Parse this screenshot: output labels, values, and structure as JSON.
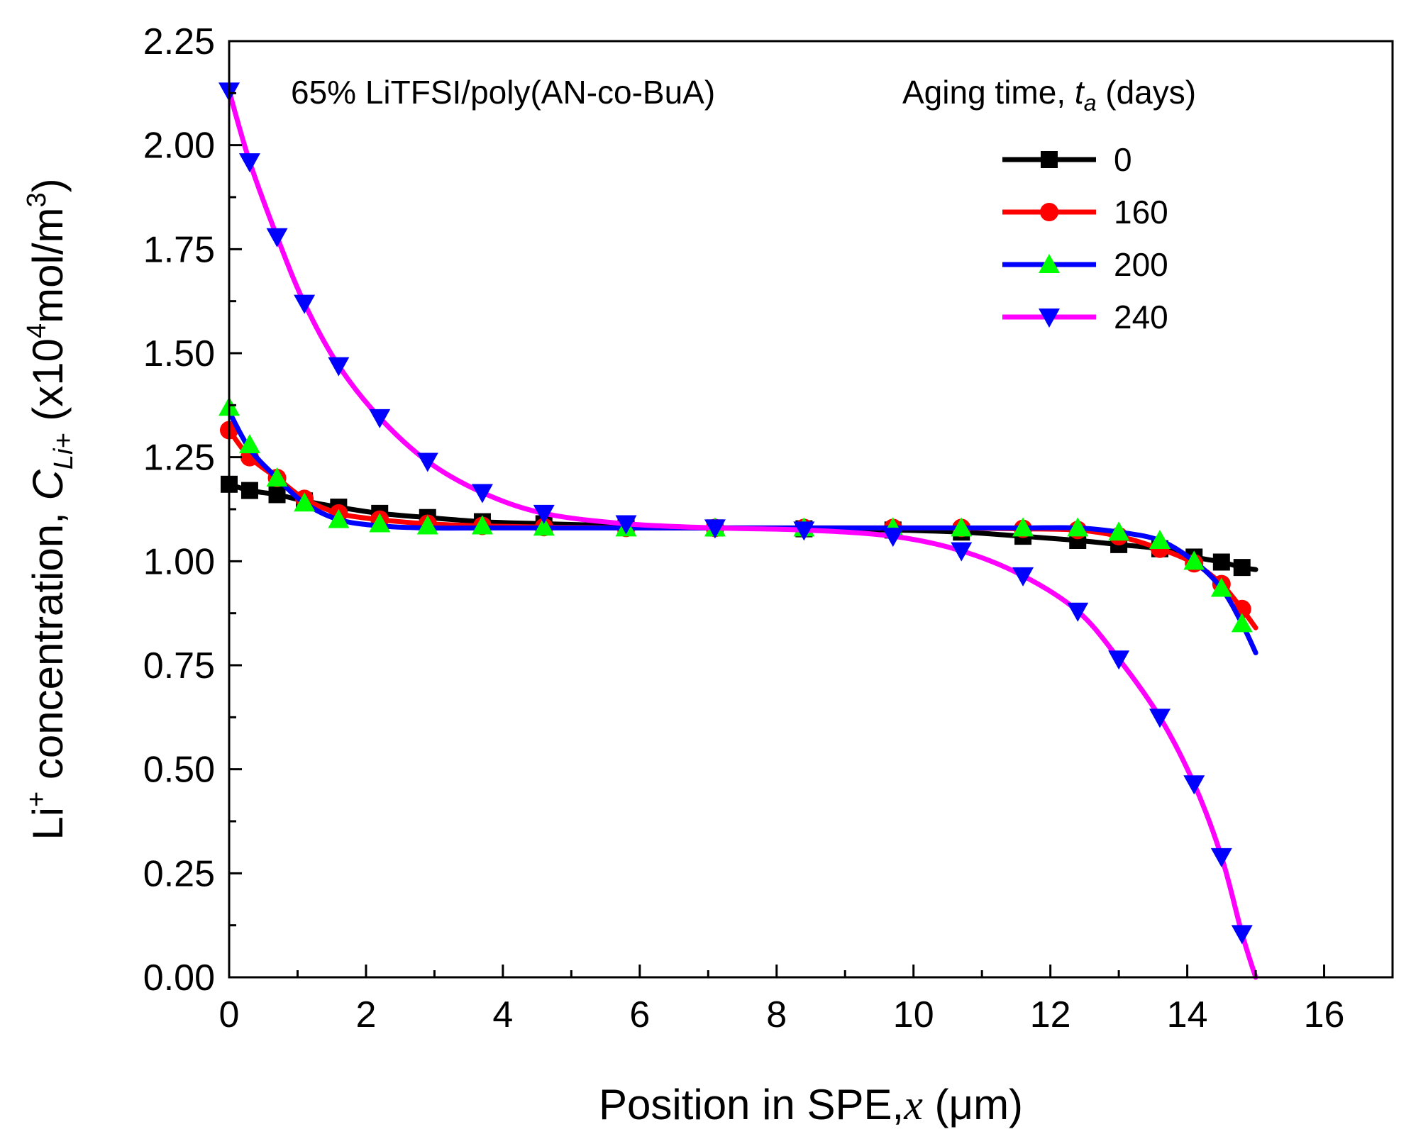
{
  "chart_data": {
    "type": "line",
    "title": "",
    "annotation": "65% LiTFSI/poly(AN-co-BuA)",
    "legend_title_prefix": "Aging time, ",
    "legend_title_var": "t",
    "legend_title_sub": "a",
    "legend_title_suffix": " (days)",
    "legend_position": "top-right",
    "xlabel_prefix": "Position in SPE,",
    "xlabel_var": "x",
    "xlabel_suffix": " (μm)",
    "ylabel_main": "Li",
    "ylabel_sup": "+",
    "ylabel_mid": " concentration,  ",
    "ylabel_var": "C",
    "ylabel_sub": "Li+",
    "ylabel_unit_pre": "  (x10",
    "ylabel_unit_sup": "4",
    "ylabel_unit_mid": "mol/m",
    "ylabel_unit_sup2": "3",
    "ylabel_unit_post": ")",
    "xlim": [
      0,
      17
    ],
    "ylim": [
      0,
      2.25
    ],
    "xticks": [
      0,
      2,
      4,
      6,
      8,
      10,
      12,
      14,
      16
    ],
    "xtick_labels": [
      "0",
      "2",
      "4",
      "6",
      "8",
      "10",
      "12",
      "14",
      "16"
    ],
    "yticks": [
      0,
      0.25,
      0.5,
      0.75,
      1.0,
      1.25,
      1.5,
      1.75,
      2.0,
      2.25
    ],
    "ytick_labels": [
      "0.00",
      "0.25",
      "0.50",
      "0.75",
      "1.00",
      "1.25",
      "1.50",
      "1.75",
      "2.00",
      "2.25"
    ],
    "grid": false,
    "series": [
      {
        "name": "0",
        "color": "#000000",
        "marker": "square",
        "marker_color": "#000000",
        "x": [
          0,
          0.3,
          0.7,
          1.1,
          1.6,
          2.2,
          2.9,
          3.7,
          4.6,
          5.8,
          7.1,
          8.4,
          9.7,
          10.7,
          11.6,
          12.4,
          13.0,
          13.6,
          14.1,
          14.5,
          14.8,
          15.0
        ],
        "y": [
          1.185,
          1.17,
          1.16,
          1.145,
          1.13,
          1.115,
          1.105,
          1.095,
          1.09,
          1.085,
          1.08,
          1.078,
          1.075,
          1.07,
          1.06,
          1.05,
          1.04,
          1.03,
          1.01,
          0.998,
          0.985,
          0.98
        ],
        "marker_x": [
          0,
          0.3,
          0.7,
          1.1,
          1.6,
          2.2,
          2.9,
          3.7,
          4.6,
          5.8,
          7.1,
          8.4,
          9.7,
          10.7,
          11.6,
          12.4,
          13.0,
          13.6,
          14.1,
          14.5,
          14.8
        ],
        "marker_y": [
          1.185,
          1.17,
          1.16,
          1.145,
          1.13,
          1.115,
          1.105,
          1.095,
          1.09,
          1.085,
          1.08,
          1.078,
          1.075,
          1.07,
          1.06,
          1.05,
          1.04,
          1.03,
          1.01,
          0.998,
          0.985
        ]
      },
      {
        "name": "160",
        "color": "#ff0000",
        "marker": "circle",
        "marker_color": "#ff0000",
        "x": [
          0,
          0.3,
          0.7,
          1.1,
          1.6,
          2.2,
          2.9,
          3.7,
          4.6,
          5.8,
          7.1,
          8.4,
          9.7,
          10.7,
          11.6,
          12.4,
          13.0,
          13.6,
          14.1,
          14.5,
          14.8,
          15.0
        ],
        "y": [
          1.315,
          1.25,
          1.2,
          1.15,
          1.115,
          1.1,
          1.09,
          1.085,
          1.082,
          1.08,
          1.08,
          1.08,
          1.08,
          1.08,
          1.078,
          1.075,
          1.06,
          1.03,
          0.995,
          0.945,
          0.885,
          0.84
        ],
        "marker_x": [
          0,
          0.3,
          0.7,
          1.1,
          1.6,
          2.2,
          2.9,
          3.7,
          4.6,
          5.8,
          7.1,
          8.4,
          9.7,
          10.7,
          11.6,
          12.4,
          13.0,
          13.6,
          14.1,
          14.5,
          14.8
        ],
        "marker_y": [
          1.315,
          1.25,
          1.2,
          1.15,
          1.115,
          1.1,
          1.09,
          1.085,
          1.082,
          1.08,
          1.08,
          1.08,
          1.08,
          1.08,
          1.078,
          1.075,
          1.06,
          1.03,
          0.995,
          0.945,
          0.885
        ]
      },
      {
        "name": "200",
        "color": "#0000ff",
        "marker": "triangle-up",
        "marker_color": "#00ff00",
        "x": [
          0,
          0.3,
          0.7,
          1.1,
          1.6,
          2.2,
          2.9,
          3.7,
          4.6,
          5.8,
          7.1,
          8.4,
          9.7,
          10.7,
          11.6,
          12.4,
          13.0,
          13.6,
          14.1,
          14.5,
          14.8,
          15.0
        ],
        "y": [
          1.36,
          1.27,
          1.2,
          1.14,
          1.1,
          1.085,
          1.08,
          1.08,
          1.08,
          1.08,
          1.08,
          1.08,
          1.08,
          1.08,
          1.08,
          1.08,
          1.07,
          1.05,
          1.0,
          0.935,
          0.85,
          0.78
        ],
        "marker_x": [
          0,
          0.3,
          0.7,
          1.1,
          1.6,
          2.2,
          2.9,
          3.7,
          4.6,
          5.8,
          7.1,
          8.4,
          9.7,
          10.7,
          11.6,
          12.4,
          13.0,
          13.6,
          14.1,
          14.5,
          14.8
        ],
        "marker_y": [
          1.37,
          1.28,
          1.2,
          1.14,
          1.1,
          1.09,
          1.085,
          1.085,
          1.082,
          1.08,
          1.08,
          1.08,
          1.08,
          1.08,
          1.08,
          1.08,
          1.07,
          1.05,
          1.0,
          0.935,
          0.85
        ]
      },
      {
        "name": "240",
        "color": "#ff00ff",
        "marker": "triangle-down",
        "marker_color": "#0000ff",
        "x": [
          0,
          0.3,
          0.7,
          1.1,
          1.6,
          2.2,
          2.9,
          3.7,
          4.6,
          5.8,
          7.1,
          8.4,
          9.7,
          10.7,
          11.6,
          12.4,
          13.0,
          13.6,
          14.1,
          14.5,
          14.8,
          15.0
        ],
        "y": [
          2.13,
          1.96,
          1.78,
          1.62,
          1.47,
          1.345,
          1.24,
          1.165,
          1.115,
          1.09,
          1.08,
          1.075,
          1.06,
          1.025,
          0.965,
          0.88,
          0.765,
          0.625,
          0.465,
          0.29,
          0.105,
          0.0
        ],
        "marker_x": [
          0,
          0.3,
          0.7,
          1.1,
          1.6,
          2.2,
          2.9,
          3.7,
          4.6,
          5.8,
          7.1,
          8.4,
          9.7,
          10.7,
          11.6,
          12.4,
          13.0,
          13.6,
          14.1,
          14.5,
          14.8
        ],
        "marker_y": [
          2.13,
          1.96,
          1.78,
          1.62,
          1.47,
          1.345,
          1.24,
          1.165,
          1.115,
          1.09,
          1.08,
          1.075,
          1.06,
          1.025,
          0.965,
          0.88,
          0.765,
          0.625,
          0.465,
          0.29,
          0.105
        ]
      }
    ]
  }
}
